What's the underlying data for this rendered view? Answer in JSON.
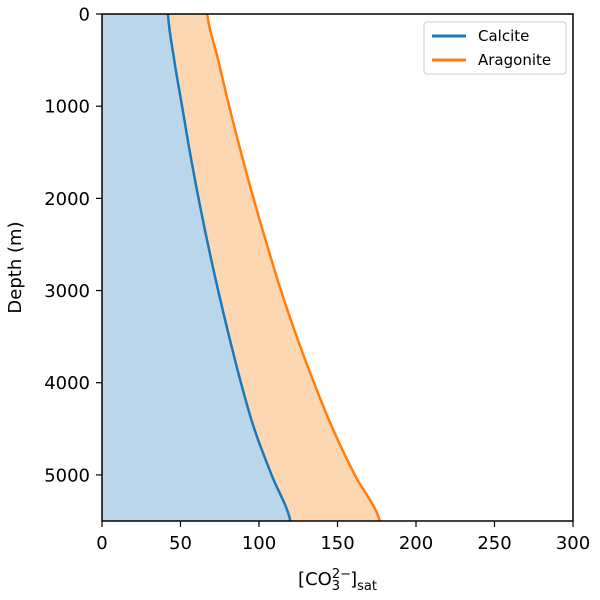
{
  "chart_data": {
    "type": "line",
    "title": "",
    "xlabel": "[CO3 2− ]sat",
    "xlabel_parts": {
      "open": "[CO",
      "sub": "3",
      "sup": "2−",
      "close": "]",
      "close_sub": "sat"
    },
    "ylabel": "Depth (m)",
    "xlim": [
      0,
      300
    ],
    "ylim": [
      5500,
      0
    ],
    "y_inverted": true,
    "xticks": [
      0,
      50,
      100,
      150,
      200,
      250,
      300
    ],
    "yticks": [
      0,
      1000,
      2000,
      3000,
      4000,
      5000
    ],
    "grid": false,
    "legend": {
      "position": "top-right"
    },
    "series": [
      {
        "name": "Calcite",
        "color": "#1f77b4",
        "fill_color": "#bad6ea",
        "fill": "from x=0 to curve",
        "points": [
          {
            "depth": 0,
            "value": 42
          },
          {
            "depth": 500,
            "value": 46
          },
          {
            "depth": 1000,
            "value": 51
          },
          {
            "depth": 1500,
            "value": 56
          },
          {
            "depth": 2000,
            "value": 61.5
          },
          {
            "depth": 2500,
            "value": 67.5
          },
          {
            "depth": 3000,
            "value": 74
          },
          {
            "depth": 3500,
            "value": 81
          },
          {
            "depth": 4000,
            "value": 88.5
          },
          {
            "depth": 4500,
            "value": 97
          },
          {
            "depth": 5000,
            "value": 108
          },
          {
            "depth": 5500,
            "value": 120
          }
        ]
      },
      {
        "name": "Aragonite",
        "color": "#ff7f0e",
        "fill_color": "#fdd7b2",
        "fill": "between Calcite and Aragonite",
        "points": [
          {
            "depth": 0,
            "value": 67
          },
          {
            "depth": 500,
            "value": 74
          },
          {
            "depth": 1000,
            "value": 81
          },
          {
            "depth": 1500,
            "value": 88.5
          },
          {
            "depth": 2000,
            "value": 96.5
          },
          {
            "depth": 2500,
            "value": 105
          },
          {
            "depth": 3000,
            "value": 114
          },
          {
            "depth": 3500,
            "value": 124
          },
          {
            "depth": 4000,
            "value": 135
          },
          {
            "depth": 4500,
            "value": 147
          },
          {
            "depth": 5000,
            "value": 161
          },
          {
            "depth": 5500,
            "value": 177
          }
        ]
      }
    ]
  }
}
